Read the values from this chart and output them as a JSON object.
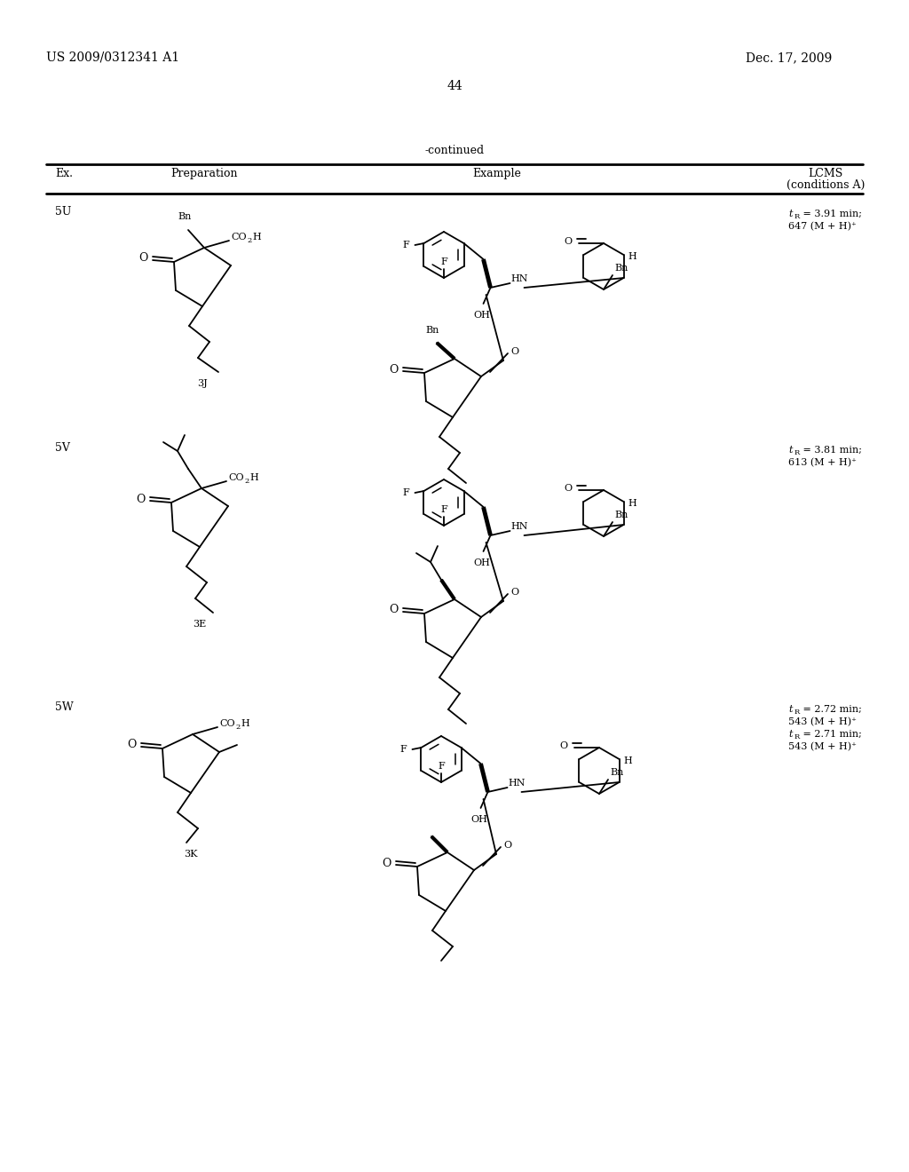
{
  "patent_number": "US 2009/0312341 A1",
  "patent_date": "Dec. 17, 2009",
  "page_number": "44",
  "continued": "-continued",
  "col_ex": "Ex.",
  "col_prep": "Preparation",
  "col_example": "Example",
  "col_lcms1": "LCMS",
  "col_lcms2": "(conditions A)",
  "rows": [
    {
      "ex": "5U",
      "prep": "3J",
      "lcms_line1": "tR = 3.91 min;",
      "lcms_line2": "647 (M + H)+"
    },
    {
      "ex": "5V",
      "prep": "3E",
      "lcms_line1": "tR = 3.81 min;",
      "lcms_line2": "613 (M + H)+"
    },
    {
      "ex": "5W",
      "prep": "3K",
      "lcms_line1": "tR = 2.72 min;",
      "lcms_line2": "543 (M + H)+",
      "lcms_line3": "tR = 2.71 min;",
      "lcms_line4": "543 (M + H)+"
    }
  ],
  "bg": "#ffffff",
  "fg": "#000000"
}
